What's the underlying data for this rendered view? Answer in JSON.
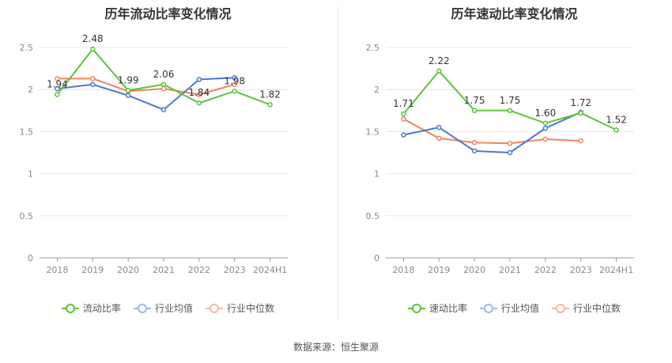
{
  "source": "数据来源：恒生聚源",
  "chart_data": [
    {
      "type": "line",
      "title": "历年流动比率变化情况",
      "categories": [
        "2018",
        "2019",
        "2020",
        "2021",
        "2022",
        "2023",
        "2024H1"
      ],
      "ylim": [
        0,
        2.5
      ],
      "yticks": [
        "0",
        "0.5",
        "1",
        "1.5",
        "2",
        "2.5"
      ],
      "grid": true,
      "legend_position": "bottom",
      "series": [
        {
          "name": "流动比率",
          "color": "#5cc33a",
          "values": [
            1.94,
            2.48,
            1.99,
            2.06,
            1.84,
            1.98,
            1.82
          ],
          "labels": [
            "1.94",
            "2.48",
            "1.99",
            "2.06",
            "1.84",
            "1.98",
            "1.82"
          ]
        },
        {
          "name": "行业均值",
          "color": "#4a78d6",
          "values": [
            2.01,
            2.06,
            1.93,
            1.76,
            2.12,
            2.14,
            null
          ]
        },
        {
          "name": "行业中位数",
          "color": "#f0845c",
          "values": [
            2.13,
            2.13,
            1.98,
            2.01,
            1.94,
            2.06,
            null
          ]
        }
      ]
    },
    {
      "type": "line",
      "title": "历年速动比率变化情况",
      "categories": [
        "2018",
        "2019",
        "2020",
        "2021",
        "2022",
        "2023",
        "2024H1"
      ],
      "ylim": [
        0,
        2.5
      ],
      "yticks": [
        "0",
        "0.5",
        "1",
        "1.5",
        "2",
        "2.5"
      ],
      "grid": true,
      "legend_position": "bottom",
      "series": [
        {
          "name": "速动比率",
          "color": "#5cc33a",
          "values": [
            1.71,
            2.22,
            1.75,
            1.75,
            1.6,
            1.72,
            1.52
          ],
          "labels": [
            "1.71",
            "2.22",
            "1.75",
            "1.75",
            "1.60",
            "1.72",
            "1.52"
          ]
        },
        {
          "name": "行业均值",
          "color": "#4a78d6",
          "values": [
            1.46,
            1.55,
            1.27,
            1.25,
            1.54,
            1.73,
            null
          ]
        },
        {
          "name": "行业中位数",
          "color": "#f0845c",
          "values": [
            1.65,
            1.42,
            1.37,
            1.36,
            1.41,
            1.39,
            null
          ]
        }
      ]
    }
  ]
}
